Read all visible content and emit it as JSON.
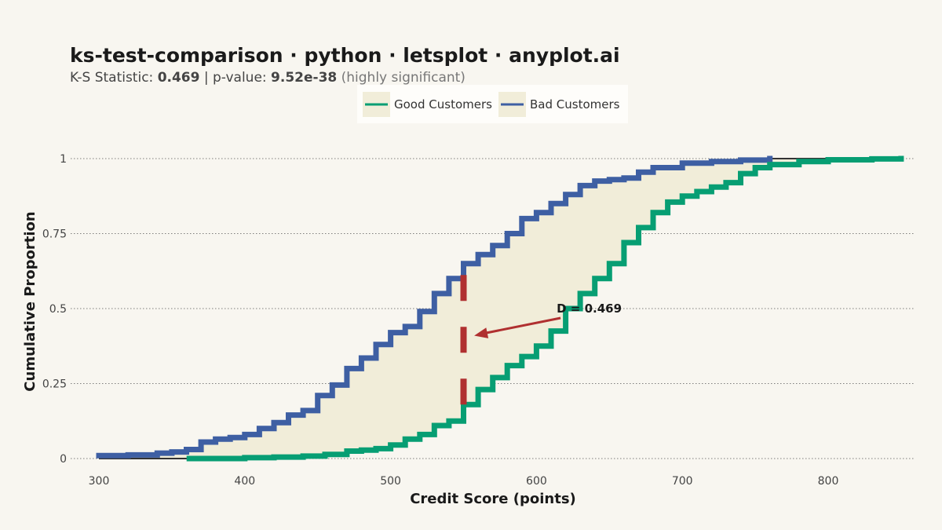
{
  "chart_data": {
    "type": "line",
    "title": "ks-test-comparison · python · letsplot · anyplot.ai",
    "subtitle": {
      "stat_label": "K-S Statistic: ",
      "stat_value": "0.469",
      "sep": " | p-value: ",
      "p_value": "9.52e-38",
      "note": " (highly significant)"
    },
    "xlabel": "Credit Score (points)",
    "ylabel": "Cumulative Proportion",
    "xlim": [
      300,
      850
    ],
    "ylim": [
      0,
      1
    ],
    "x_ticks": [
      300,
      400,
      500,
      600,
      700,
      800
    ],
    "y_ticks": [
      0,
      0.25,
      0.5,
      0.75,
      1
    ],
    "y_tick_labels": [
      "0",
      "0.25",
      "0.5",
      "0.75",
      "1"
    ],
    "grid": "horizontal dotted",
    "legend_position": "top-center",
    "series": [
      {
        "name": "Good Customers",
        "color": "#079e73",
        "x": [
          362,
          400,
          420,
          440,
          455,
          470,
          480,
          490,
          500,
          510,
          520,
          530,
          540,
          550,
          560,
          570,
          580,
          590,
          600,
          610,
          620,
          630,
          640,
          650,
          660,
          670,
          680,
          690,
          700,
          710,
          720,
          730,
          740,
          750,
          760,
          780,
          800,
          830,
          850
        ],
        "y": [
          0,
          0.003,
          0.005,
          0.008,
          0.014,
          0.025,
          0.028,
          0.033,
          0.045,
          0.065,
          0.08,
          0.11,
          0.125,
          0.18,
          0.23,
          0.27,
          0.31,
          0.34,
          0.375,
          0.425,
          0.5,
          0.55,
          0.6,
          0.65,
          0.72,
          0.77,
          0.82,
          0.855,
          0.875,
          0.89,
          0.905,
          0.92,
          0.95,
          0.97,
          0.98,
          0.99,
          0.996,
          0.999,
          1.0
        ]
      },
      {
        "name": "Bad Customers",
        "color": "#3e5fa3",
        "x": [
          300,
          320,
          340,
          350,
          360,
          370,
          380,
          390,
          400,
          410,
          420,
          430,
          440,
          450,
          460,
          470,
          480,
          490,
          500,
          510,
          520,
          530,
          540,
          550,
          560,
          570,
          580,
          590,
          600,
          610,
          620,
          630,
          640,
          650,
          660,
          670,
          680,
          700,
          720,
          740,
          760
        ],
        "y": [
          0.01,
          0.012,
          0.018,
          0.022,
          0.03,
          0.055,
          0.065,
          0.07,
          0.08,
          0.1,
          0.12,
          0.145,
          0.16,
          0.21,
          0.245,
          0.3,
          0.335,
          0.38,
          0.42,
          0.44,
          0.49,
          0.55,
          0.6,
          0.65,
          0.68,
          0.71,
          0.75,
          0.8,
          0.82,
          0.85,
          0.88,
          0.91,
          0.925,
          0.93,
          0.935,
          0.955,
          0.97,
          0.985,
          0.99,
          0.995,
          1.0
        ]
      }
    ],
    "ks_line": {
      "x": 550,
      "y_low": 0.18,
      "y_high": 0.65,
      "color": "#b03030"
    },
    "annotation": {
      "text": "D = 0.469",
      "x": 595,
      "y": 0.5,
      "arrow_to_x": 553,
      "arrow_to_y": 0.415
    },
    "fill_color": "#f1edd9"
  }
}
